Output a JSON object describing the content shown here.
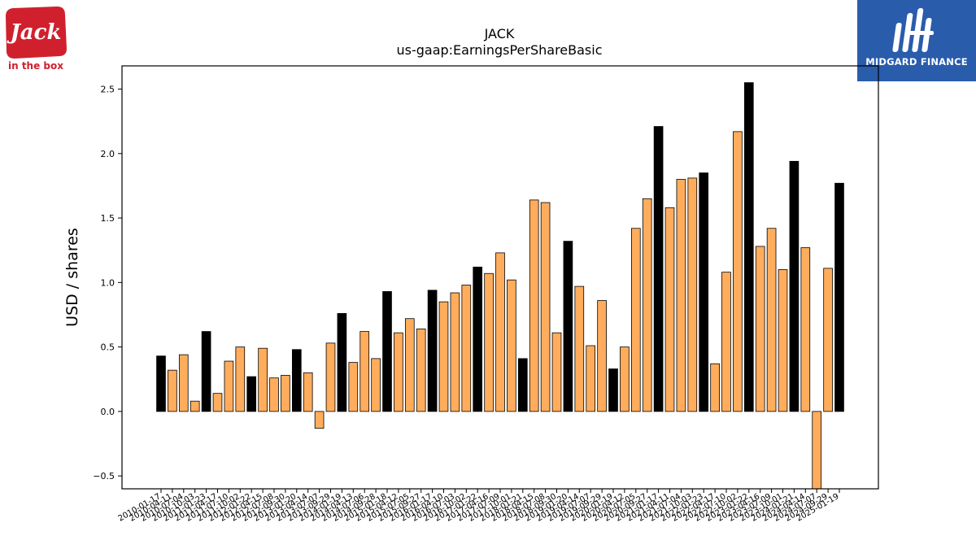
{
  "logos": {
    "left": {
      "line1": "Jack",
      "line2": "in the box",
      "color": "#d0202e"
    },
    "right": {
      "text": "MIDGARD FINANCE",
      "bg": "#2a5cac"
    }
  },
  "chart_data": {
    "type": "bar",
    "title": "JACK",
    "subtitle": "us-gaap:EarningsPerShareBasic",
    "xlabel": "",
    "ylabel": "USD / shares",
    "ylim": [
      -0.6,
      2.68
    ],
    "yticks": [
      -0.5,
      0.0,
      0.5,
      1.0,
      1.5,
      2.0,
      2.5
    ],
    "ytick_labels": [
      "−0.5",
      "0.0",
      "0.5",
      "1.0",
      "1.5",
      "2.0",
      "2.5"
    ],
    "colors": {
      "annual": "#000000",
      "quarterly": "#ffad5c"
    },
    "categories": [
      "2010-01-17",
      "2010-04-11",
      "2010-07-04",
      "2010-10-03",
      "2011-01-23",
      "2011-04-17",
      "2011-07-10",
      "2011-10-02",
      "2012-01-22",
      "2012-04-15",
      "2012-07-08",
      "2012-09-30",
      "2013-01-20",
      "2013-04-14",
      "2013-07-07",
      "2013-09-29",
      "2014-01-19",
      "2014-04-13",
      "2014-07-06",
      "2014-09-28",
      "2015-01-18",
      "2015-04-12",
      "2015-07-05",
      "2015-09-27",
      "2016-01-17",
      "2016-04-10",
      "2016-07-03",
      "2016-10-02",
      "2017-01-22",
      "2017-04-16",
      "2017-07-09",
      "2017-10-01",
      "2018-01-21",
      "2018-04-15",
      "2018-07-08",
      "2018-09-30",
      "2019-01-20",
      "2019-04-14",
      "2019-07-07",
      "2019-09-29",
      "2020-01-19",
      "2020-04-12",
      "2020-07-05",
      "2020-09-27",
      "2021-01-17",
      "2021-04-11",
      "2021-07-04",
      "2021-10-03",
      "2022-01-23",
      "2022-04-17",
      "2022-07-10",
      "2022-10-02",
      "2023-01-22",
      "2023-04-16",
      "2023-07-09",
      "2023-10-01",
      "2024-01-21",
      "2024-04-14",
      "2024-07-07",
      "2024-09-29",
      "2025-01-19"
    ],
    "values": [
      0.43,
      0.32,
      0.44,
      0.08,
      0.62,
      0.14,
      0.39,
      0.5,
      0.27,
      0.49,
      0.26,
      0.28,
      0.48,
      0.3,
      -0.13,
      0.53,
      0.76,
      0.38,
      0.62,
      0.41,
      0.93,
      0.61,
      0.72,
      0.64,
      0.94,
      0.85,
      0.92,
      0.98,
      1.12,
      1.07,
      1.23,
      1.02,
      0.41,
      1.64,
      1.62,
      0.61,
      1.32,
      0.97,
      0.51,
      0.86,
      0.33,
      0.5,
      1.42,
      1.65,
      2.21,
      1.58,
      1.8,
      1.81,
      1.85,
      0.37,
      1.08,
      2.17,
      2.55,
      1.28,
      1.42,
      1.1,
      1.94,
      1.27,
      -0.6,
      1.11,
      1.77
    ],
    "annual": [
      true,
      false,
      false,
      false,
      true,
      false,
      false,
      false,
      true,
      false,
      false,
      false,
      true,
      false,
      false,
      false,
      true,
      false,
      false,
      false,
      true,
      false,
      false,
      false,
      true,
      false,
      false,
      false,
      true,
      false,
      false,
      false,
      true,
      false,
      false,
      false,
      true,
      false,
      false,
      false,
      true,
      false,
      false,
      false,
      true,
      false,
      false,
      false,
      true,
      false,
      false,
      false,
      true,
      false,
      false,
      false,
      true,
      false,
      false,
      false,
      true
    ]
  }
}
